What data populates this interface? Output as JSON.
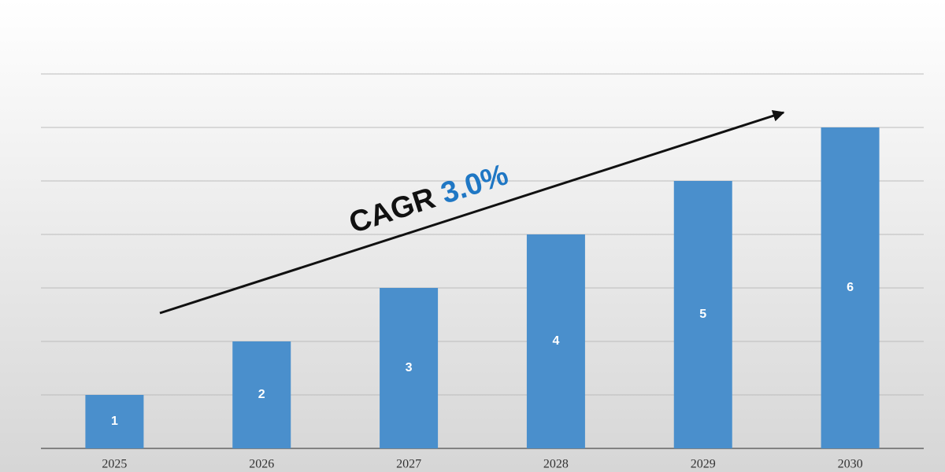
{
  "chart_data": {
    "type": "bar",
    "categories": [
      "2025",
      "2026",
      "2027",
      "2028",
      "2029",
      "2030"
    ],
    "values": [
      1,
      2,
      3,
      4,
      5,
      6
    ],
    "color": "#4a8fcc",
    "ylim": [
      0,
      8
    ],
    "yticks": [
      0,
      1,
      2,
      3,
      4,
      5,
      6,
      7
    ],
    "show_ytick_labels": false,
    "grid": true,
    "annotation": {
      "label": "CAGR",
      "value": "3.0%",
      "label_color": "#111111",
      "value_color": "#1f77c4"
    }
  }
}
